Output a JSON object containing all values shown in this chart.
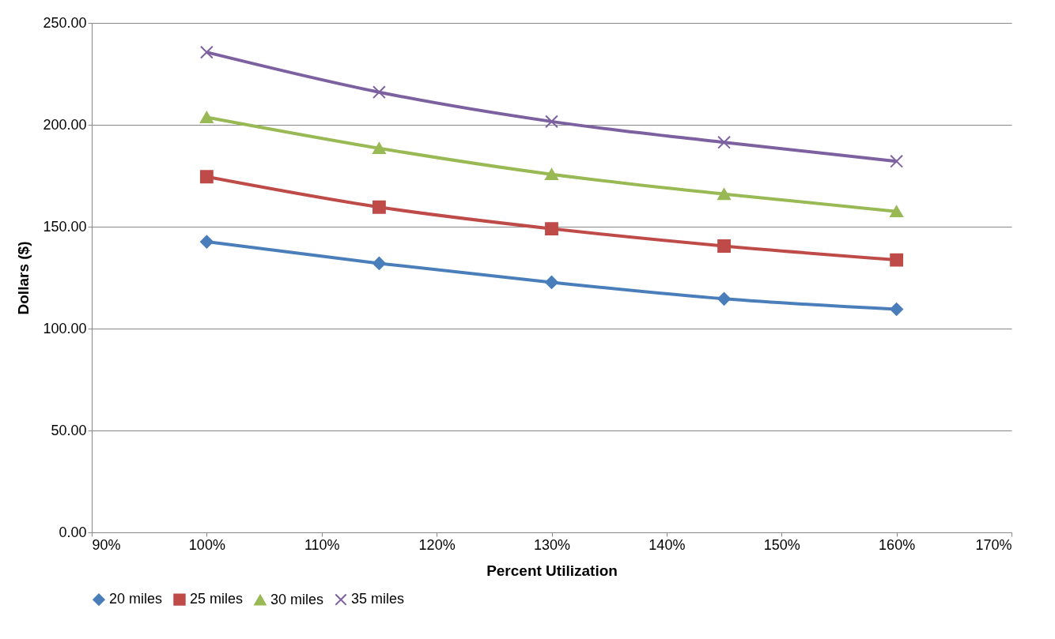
{
  "chart_data": {
    "type": "line",
    "xlabel": "Percent Utilization",
    "ylabel": "Dollars ($)",
    "x": [
      100,
      115,
      130,
      145,
      160
    ],
    "series": [
      {
        "name": "20 miles",
        "color": "#4a7ebb",
        "marker": "diamond",
        "values": [
          142.6,
          132.0,
          122.7,
          114.6,
          109.5
        ]
      },
      {
        "name": "25 miles",
        "color": "#be4b48",
        "marker": "square",
        "values": [
          174.5,
          159.6,
          149.0,
          140.5,
          133.7
        ]
      },
      {
        "name": "30 miles",
        "color": "#98b954",
        "marker": "triangle",
        "values": [
          203.7,
          188.5,
          175.7,
          166.0,
          157.5
        ]
      },
      {
        "name": "35 miles",
        "color": "#7d60a0",
        "marker": "cross",
        "values": [
          235.6,
          216.0,
          201.6,
          191.4,
          182.1
        ]
      }
    ],
    "xlim": [
      90,
      170
    ],
    "xticks": [
      {
        "value": 90,
        "label": "90%"
      },
      {
        "value": 100,
        "label": "100%"
      },
      {
        "value": 110,
        "label": "110%"
      },
      {
        "value": 120,
        "label": "120%"
      },
      {
        "value": 130,
        "label": "130%"
      },
      {
        "value": 140,
        "label": "140%"
      },
      {
        "value": 150,
        "label": "150%"
      },
      {
        "value": 160,
        "label": "160%"
      },
      {
        "value": 170,
        "label": "170%"
      }
    ],
    "ylim": [
      0,
      250
    ],
    "yticks": [
      {
        "value": 0,
        "label": "0.00"
      },
      {
        "value": 50,
        "label": "50.00"
      },
      {
        "value": 100,
        "label": "100.00"
      },
      {
        "value": 150,
        "label": "150.00"
      },
      {
        "value": 200,
        "label": "200.00"
      },
      {
        "value": 250,
        "label": "250.00"
      }
    ],
    "grid": "y",
    "legend": "bottom",
    "line_style": "solid"
  }
}
